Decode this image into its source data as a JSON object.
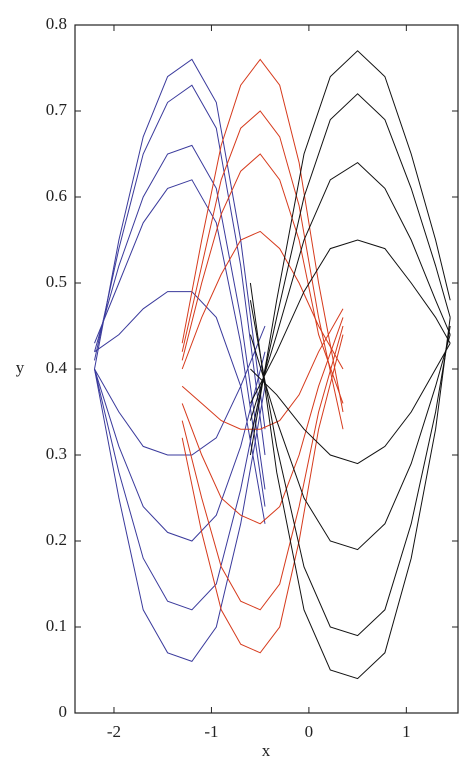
{
  "chart_data": {
    "type": "line",
    "x_label": "x",
    "y_label": "y",
    "xlim": [
      -2.4,
      1.53
    ],
    "ylim": [
      0,
      0.8
    ],
    "xticks": [
      -2,
      -1,
      0,
      1
    ],
    "yticks": [
      0,
      0.1,
      0.2,
      0.3,
      0.4,
      0.5,
      0.6,
      0.7,
      0.8
    ],
    "series": [
      {
        "color": "#3a3a9c",
        "x": [
          -2.2,
          -1.95,
          -1.7,
          -1.45,
          -1.2,
          -0.95,
          -0.7,
          -0.45
        ],
        "values": [
          0.4,
          0.55,
          0.67,
          0.74,
          0.76,
          0.71,
          0.55,
          0.33
        ]
      },
      {
        "color": "#3a3a9c",
        "x": [
          -2.2,
          -1.95,
          -1.7,
          -1.45,
          -1.2,
          -0.95,
          -0.7,
          -0.45
        ],
        "values": [
          0.41,
          0.54,
          0.65,
          0.71,
          0.73,
          0.68,
          0.52,
          0.3
        ]
      },
      {
        "color": "#3a3a9c",
        "x": [
          -2.2,
          -1.95,
          -1.7,
          -1.45,
          -1.2,
          -0.95,
          -0.7,
          -0.45
        ],
        "values": [
          0.42,
          0.52,
          0.6,
          0.65,
          0.66,
          0.61,
          0.46,
          0.26
        ]
      },
      {
        "color": "#3a3a9c",
        "x": [
          -2.2,
          -1.95,
          -1.7,
          -1.45,
          -1.2,
          -0.95,
          -0.7,
          -0.45
        ],
        "values": [
          0.43,
          0.5,
          0.57,
          0.61,
          0.62,
          0.57,
          0.43,
          0.24
        ]
      },
      {
        "color": "#3a3a9c",
        "x": [
          -2.2,
          -1.95,
          -1.7,
          -1.45,
          -1.2,
          -0.95,
          -0.7,
          -0.45
        ],
        "values": [
          0.42,
          0.44,
          0.47,
          0.49,
          0.49,
          0.46,
          0.38,
          0.22
        ]
      },
      {
        "color": "#3a3a9c",
        "x": [
          -2.2,
          -1.95,
          -1.7,
          -1.45,
          -1.2,
          -0.95,
          -0.7,
          -0.45
        ],
        "values": [
          0.4,
          0.35,
          0.31,
          0.3,
          0.3,
          0.32,
          0.38,
          0.45
        ]
      },
      {
        "color": "#3a3a9c",
        "x": [
          -2.2,
          -1.95,
          -1.7,
          -1.45,
          -1.2,
          -0.95,
          -0.7,
          -0.45
        ],
        "values": [
          0.4,
          0.31,
          0.24,
          0.21,
          0.2,
          0.23,
          0.31,
          0.42
        ]
      },
      {
        "color": "#3a3a9c",
        "x": [
          -2.2,
          -1.95,
          -1.7,
          -1.45,
          -1.2,
          -0.95,
          -0.7,
          -0.45
        ],
        "values": [
          0.4,
          0.28,
          0.18,
          0.13,
          0.12,
          0.15,
          0.26,
          0.4
        ]
      },
      {
        "color": "#3a3a9c",
        "x": [
          -2.2,
          -1.95,
          -1.7,
          -1.45,
          -1.2,
          -0.95,
          -0.7,
          -0.45
        ],
        "values": [
          0.4,
          0.25,
          0.12,
          0.07,
          0.06,
          0.1,
          0.22,
          0.38
        ]
      },
      {
        "color": "#d63a1c",
        "x": [
          -1.3,
          -1.1,
          -0.9,
          -0.7,
          -0.5,
          -0.3,
          -0.1,
          0.1,
          0.35
        ],
        "values": [
          0.43,
          0.55,
          0.66,
          0.73,
          0.76,
          0.73,
          0.64,
          0.5,
          0.35
        ]
      },
      {
        "color": "#d63a1c",
        "x": [
          -1.3,
          -1.1,
          -0.9,
          -0.7,
          -0.5,
          -0.3,
          -0.1,
          0.1,
          0.35
        ],
        "values": [
          0.42,
          0.52,
          0.62,
          0.68,
          0.7,
          0.67,
          0.59,
          0.46,
          0.33
        ]
      },
      {
        "color": "#d63a1c",
        "x": [
          -1.3,
          -1.1,
          -0.9,
          -0.7,
          -0.5,
          -0.3,
          -0.1,
          0.1,
          0.35
        ],
        "values": [
          0.41,
          0.5,
          0.58,
          0.63,
          0.65,
          0.62,
          0.55,
          0.44,
          0.36
        ]
      },
      {
        "color": "#d63a1c",
        "x": [
          -1.3,
          -1.1,
          -0.9,
          -0.7,
          -0.5,
          -0.3,
          -0.1,
          0.1,
          0.35
        ],
        "values": [
          0.4,
          0.46,
          0.51,
          0.55,
          0.56,
          0.54,
          0.5,
          0.45,
          0.4
        ]
      },
      {
        "color": "#d63a1c",
        "x": [
          -1.3,
          -1.1,
          -0.9,
          -0.7,
          -0.5,
          -0.3,
          -0.1,
          0.1,
          0.35
        ],
        "values": [
          0.38,
          0.36,
          0.34,
          0.33,
          0.33,
          0.34,
          0.37,
          0.42,
          0.47
        ]
      },
      {
        "color": "#d63a1c",
        "x": [
          -1.3,
          -1.1,
          -0.9,
          -0.7,
          -0.5,
          -0.3,
          -0.1,
          0.1,
          0.35
        ],
        "values": [
          0.36,
          0.3,
          0.25,
          0.23,
          0.22,
          0.24,
          0.3,
          0.38,
          0.46
        ]
      },
      {
        "color": "#d63a1c",
        "x": [
          -1.3,
          -1.1,
          -0.9,
          -0.7,
          -0.5,
          -0.3,
          -0.1,
          0.1,
          0.35
        ],
        "values": [
          0.34,
          0.25,
          0.17,
          0.13,
          0.12,
          0.15,
          0.24,
          0.35,
          0.45
        ]
      },
      {
        "color": "#d63a1c",
        "x": [
          -1.3,
          -1.1,
          -0.9,
          -0.7,
          -0.5,
          -0.3,
          -0.1,
          0.1,
          0.35
        ],
        "values": [
          0.32,
          0.21,
          0.12,
          0.08,
          0.07,
          0.1,
          0.2,
          0.33,
          0.44
        ]
      },
      {
        "color": "#111111",
        "x": [
          -0.6,
          -0.33,
          -0.05,
          0.22,
          0.5,
          0.78,
          1.05,
          1.3,
          1.45
        ],
        "values": [
          0.3,
          0.48,
          0.65,
          0.74,
          0.77,
          0.74,
          0.65,
          0.55,
          0.48
        ]
      },
      {
        "color": "#111111",
        "x": [
          -0.6,
          -0.33,
          -0.05,
          0.22,
          0.5,
          0.78,
          1.05,
          1.3,
          1.45
        ],
        "values": [
          0.32,
          0.46,
          0.6,
          0.69,
          0.72,
          0.69,
          0.61,
          0.52,
          0.46
        ]
      },
      {
        "color": "#111111",
        "x": [
          -0.6,
          -0.33,
          -0.05,
          0.22,
          0.5,
          0.78,
          1.05,
          1.3,
          1.45
        ],
        "values": [
          0.34,
          0.44,
          0.55,
          0.62,
          0.64,
          0.61,
          0.55,
          0.48,
          0.44
        ]
      },
      {
        "color": "#111111",
        "x": [
          -0.6,
          -0.33,
          -0.05,
          0.22,
          0.5,
          0.78,
          1.05,
          1.3,
          1.45
        ],
        "values": [
          0.36,
          0.42,
          0.49,
          0.54,
          0.55,
          0.54,
          0.5,
          0.46,
          0.43
        ]
      },
      {
        "color": "#111111",
        "x": [
          -0.6,
          -0.33,
          -0.05,
          0.22,
          0.5,
          0.78,
          1.05,
          1.3,
          1.45
        ],
        "values": [
          0.4,
          0.37,
          0.33,
          0.3,
          0.29,
          0.31,
          0.35,
          0.4,
          0.43
        ]
      },
      {
        "color": "#111111",
        "x": [
          -0.6,
          -0.33,
          -0.05,
          0.22,
          0.5,
          0.78,
          1.05,
          1.3,
          1.45
        ],
        "values": [
          0.44,
          0.34,
          0.25,
          0.2,
          0.19,
          0.22,
          0.29,
          0.38,
          0.44
        ]
      },
      {
        "color": "#111111",
        "x": [
          -0.6,
          -0.33,
          -0.05,
          0.22,
          0.5,
          0.78,
          1.05,
          1.3,
          1.45
        ],
        "values": [
          0.48,
          0.31,
          0.17,
          0.1,
          0.09,
          0.12,
          0.22,
          0.35,
          0.45
        ]
      },
      {
        "color": "#111111",
        "x": [
          -0.6,
          -0.33,
          -0.05,
          0.22,
          0.5,
          0.78,
          1.05,
          1.3,
          1.45
        ],
        "values": [
          0.5,
          0.28,
          0.12,
          0.05,
          0.04,
          0.07,
          0.18,
          0.33,
          0.46
        ]
      }
    ]
  }
}
